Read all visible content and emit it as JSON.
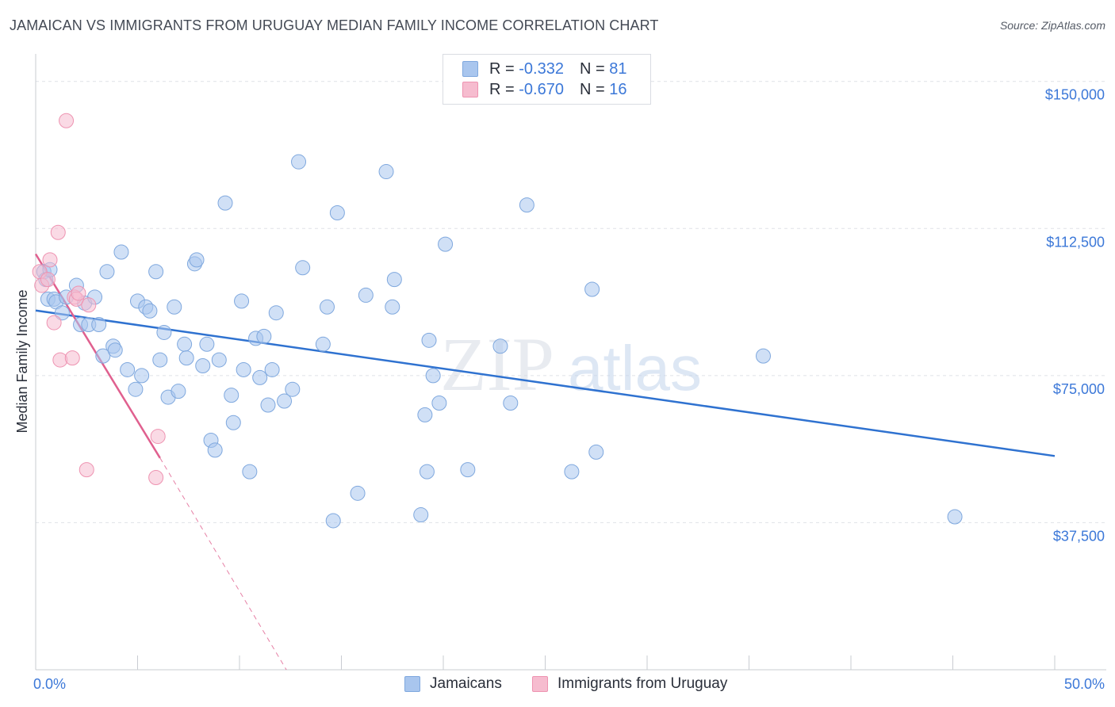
{
  "title": "JAMAICAN VS IMMIGRANTS FROM URUGUAY MEDIAN FAMILY INCOME CORRELATION CHART",
  "source": "Source: ZipAtlas.com",
  "watermark": {
    "zip": "ZIP",
    "atlas": "atlas"
  },
  "legend": {
    "jamaicans": {
      "r_label": "R =",
      "r_value": "-0.332",
      "n_label": "N =",
      "n_value": "81"
    },
    "uruguay": {
      "r_label": "R =",
      "r_value": "-0.670",
      "n_label": "N =",
      "n_value": "16"
    }
  },
  "bottom_legend": {
    "jamaicans": "Jamaicans",
    "uruguay": "Immigrants from Uruguay"
  },
  "colors": {
    "blue_fill": "#a9c6ee",
    "blue_stroke": "#7fa8de",
    "blue_line": "#2f72d0",
    "pink_fill": "#f6bccf",
    "pink_stroke": "#ee93b1",
    "pink_line": "#e0608f",
    "tick_label": "#3c78d8",
    "grid": "#dfe2e7"
  },
  "chart_data": {
    "type": "scatter",
    "title": "JAMAICAN VS IMMIGRANTS FROM URUGUAY MEDIAN FAMILY INCOME CORRELATION CHART",
    "xlabel": "",
    "ylabel": "Median Family Income",
    "xlim": [
      0,
      50
    ],
    "ylim": [
      0,
      155000
    ],
    "x_tick_labels": [
      "0.0%",
      "50.0%"
    ],
    "y_ticks": [
      37500,
      75000,
      112500,
      150000
    ],
    "y_tick_labels": [
      "$37,500",
      "$75,000",
      "$112,500",
      "$150,000"
    ],
    "series": [
      {
        "name": "Jamaicans",
        "points": [
          [
            0.4,
            101500
          ],
          [
            0.5,
            99500
          ],
          [
            0.6,
            94500
          ],
          [
            0.9,
            94500
          ],
          [
            1.0,
            93800
          ],
          [
            1.3,
            91000
          ],
          [
            1.5,
            95000
          ],
          [
            2.0,
            98000
          ],
          [
            2.2,
            88000
          ],
          [
            2.4,
            93500
          ],
          [
            2.6,
            88000
          ],
          [
            2.9,
            95000
          ],
          [
            3.1,
            88000
          ],
          [
            3.3,
            80000
          ],
          [
            3.5,
            101500
          ],
          [
            3.8,
            82500
          ],
          [
            3.9,
            81500
          ],
          [
            4.2,
            106500
          ],
          [
            4.5,
            76500
          ],
          [
            4.9,
            71500
          ],
          [
            5.0,
            94000
          ],
          [
            5.2,
            75000
          ],
          [
            5.4,
            92500
          ],
          [
            5.6,
            91500
          ],
          [
            5.9,
            101500
          ],
          [
            6.1,
            79000
          ],
          [
            6.3,
            86000
          ],
          [
            6.5,
            69500
          ],
          [
            6.8,
            92500
          ],
          [
            7.0,
            71000
          ],
          [
            7.3,
            83000
          ],
          [
            7.4,
            79500
          ],
          [
            7.8,
            103500
          ],
          [
            7.9,
            104500
          ],
          [
            8.2,
            77500
          ],
          [
            8.4,
            83000
          ],
          [
            8.6,
            58500
          ],
          [
            8.8,
            56000
          ],
          [
            9.0,
            79000
          ],
          [
            9.3,
            119000
          ],
          [
            9.6,
            70000
          ],
          [
            9.7,
            63000
          ],
          [
            10.1,
            94000
          ],
          [
            10.2,
            76500
          ],
          [
            10.5,
            50500
          ],
          [
            10.8,
            84500
          ],
          [
            11.0,
            74500
          ],
          [
            11.2,
            85000
          ],
          [
            11.4,
            67500
          ],
          [
            11.6,
            76500
          ],
          [
            11.8,
            91000
          ],
          [
            12.2,
            68500
          ],
          [
            12.6,
            71500
          ],
          [
            12.9,
            129500
          ],
          [
            13.1,
            102500
          ],
          [
            14.1,
            83000
          ],
          [
            14.3,
            92500
          ],
          [
            14.6,
            38000
          ],
          [
            14.8,
            116500
          ],
          [
            15.8,
            45000
          ],
          [
            16.2,
            95500
          ],
          [
            17.2,
            127000
          ],
          [
            17.5,
            92500
          ],
          [
            17.6,
            99500
          ],
          [
            19.1,
            65000
          ],
          [
            19.2,
            50500
          ],
          [
            19.3,
            84000
          ],
          [
            19.5,
            75000
          ],
          [
            19.8,
            68000
          ],
          [
            20.1,
            108500
          ],
          [
            21.2,
            51000
          ],
          [
            22.8,
            82500
          ],
          [
            23.3,
            68000
          ],
          [
            24.1,
            118500
          ],
          [
            26.3,
            50500
          ],
          [
            27.3,
            97000
          ],
          [
            27.5,
            55500
          ],
          [
            35.7,
            80000
          ],
          [
            45.1,
            39000
          ],
          [
            18.9,
            39500
          ],
          [
            0.7,
            102000
          ]
        ],
        "trend": {
          "x": [
            0,
            50
          ],
          "y": [
            91600,
            54500
          ]
        }
      },
      {
        "name": "Immigrants from Uruguay",
        "points": [
          [
            0.2,
            101500
          ],
          [
            0.3,
            98000
          ],
          [
            0.6,
            99500
          ],
          [
            0.7,
            104500
          ],
          [
            0.9,
            88500
          ],
          [
            1.1,
            111500
          ],
          [
            1.2,
            79000
          ],
          [
            1.5,
            140000
          ],
          [
            1.8,
            79500
          ],
          [
            1.9,
            95000
          ],
          [
            2.0,
            94500
          ],
          [
            2.1,
            96000
          ],
          [
            2.6,
            93000
          ],
          [
            2.5,
            51000
          ],
          [
            6.0,
            59500
          ],
          [
            5.9,
            49000
          ]
        ],
        "trend": {
          "x": [
            0,
            6.1
          ],
          "y": [
            106000,
            54000
          ]
        },
        "trend_extension": {
          "x": [
            6.1,
            12.3
          ],
          "y": [
            54000,
            0
          ]
        }
      }
    ]
  }
}
